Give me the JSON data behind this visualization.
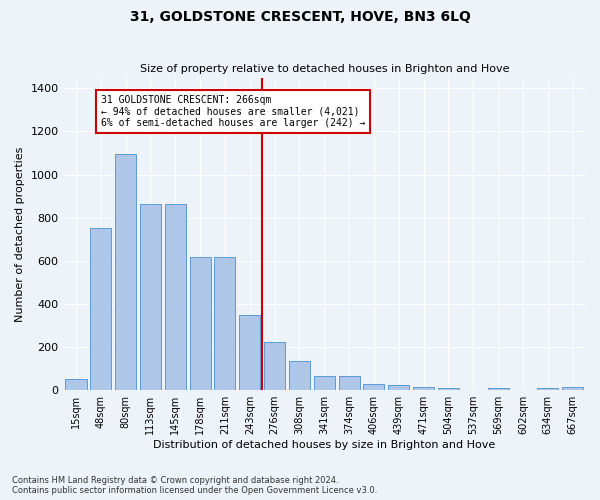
{
  "title": "31, GOLDSTONE CRESCENT, HOVE, BN3 6LQ",
  "subtitle": "Size of property relative to detached houses in Brighton and Hove",
  "xlabel": "Distribution of detached houses by size in Brighton and Hove",
  "ylabel": "Number of detached properties",
  "footnote1": "Contains HM Land Registry data © Crown copyright and database right 2024.",
  "footnote2": "Contains public sector information licensed under the Open Government Licence v3.0.",
  "bar_labels": [
    "15sqm",
    "48sqm",
    "80sqm",
    "113sqm",
    "145sqm",
    "178sqm",
    "211sqm",
    "243sqm",
    "276sqm",
    "308sqm",
    "341sqm",
    "374sqm",
    "406sqm",
    "439sqm",
    "471sqm",
    "504sqm",
    "537sqm",
    "569sqm",
    "602sqm",
    "634sqm",
    "667sqm"
  ],
  "bar_heights": [
    50,
    750,
    1095,
    865,
    865,
    620,
    620,
    350,
    225,
    135,
    65,
    65,
    30,
    25,
    15,
    10,
    0,
    10,
    0,
    10,
    15
  ],
  "bar_color": "#aec6e8",
  "bar_edge_color": "#5b9bd5",
  "annotation_title": "31 GOLDSTONE CRESCENT: 266sqm",
  "annotation_line1": "← 94% of detached houses are smaller (4,021)",
  "annotation_line2": "6% of semi-detached houses are larger (242) →",
  "vline_color": "#cc0000",
  "annotation_box_color": "#cc0000",
  "background_color": "#eef2f9",
  "ylim": [
    0,
    1450
  ],
  "yticks": [
    0,
    200,
    400,
    600,
    800,
    1000,
    1200,
    1400
  ],
  "vline_bar_index": 8,
  "figsize": [
    6.0,
    5.0
  ],
  "dpi": 100
}
